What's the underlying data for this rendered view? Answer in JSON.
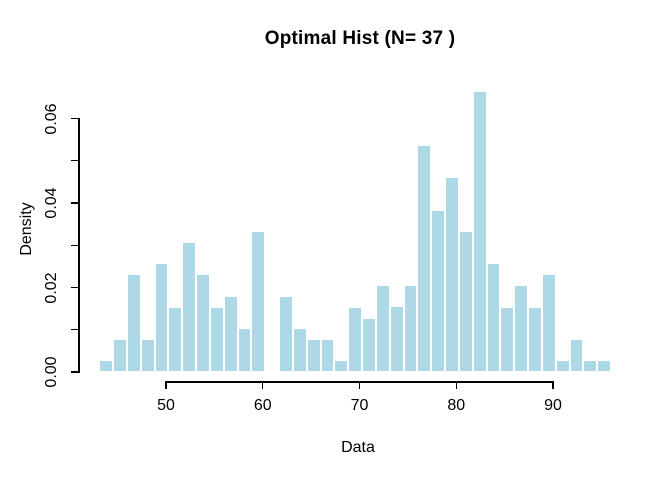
{
  "chart_data": {
    "type": "bar",
    "chart_kind": "histogram",
    "title": "Optimal Hist (N= 37 )",
    "xlabel": "Data",
    "ylabel": "Density",
    "n_bins": 37,
    "bin_start": 43.1,
    "bin_width": 1.43,
    "densities": [
      0.0028,
      0.0078,
      0.0231,
      0.0078,
      0.0258,
      0.0155,
      0.0307,
      0.0231,
      0.0155,
      0.018,
      0.0104,
      0.0334,
      0,
      0.0179,
      0.0104,
      0.0078,
      0.0078,
      0.0028,
      0.0155,
      0.0128,
      0.0206,
      0.0156,
      0.0206,
      0.0538,
      0.0384,
      0.0461,
      0.0335,
      0.0665,
      0.0258,
      0.0155,
      0.0206,
      0.0155,
      0.0231,
      0.0028,
      0.0078,
      0.0028,
      0.0028
    ],
    "xlim": [
      43.1,
      96.0
    ],
    "ylim": [
      0,
      0.0665
    ],
    "x_ticks": [
      {
        "v": 50,
        "label": "50"
      },
      {
        "v": 60,
        "label": "60"
      },
      {
        "v": 70,
        "label": "70"
      },
      {
        "v": 80,
        "label": "80"
      },
      {
        "v": 90,
        "label": "90"
      }
    ],
    "y_ticks": [
      {
        "v": 0.0,
        "label": "0.00"
      },
      {
        "v": 0.01,
        "label": ""
      },
      {
        "v": 0.02,
        "label": "0.02"
      },
      {
        "v": 0.03,
        "label": ""
      },
      {
        "v": 0.04,
        "label": "0.04"
      },
      {
        "v": 0.05,
        "label": ""
      },
      {
        "v": 0.06,
        "label": "0.06"
      }
    ],
    "bar_fill": "#ADD8E6",
    "bar_border": "#FFFFFF",
    "axis_color": "#000000",
    "grid": false,
    "legend": "none"
  }
}
